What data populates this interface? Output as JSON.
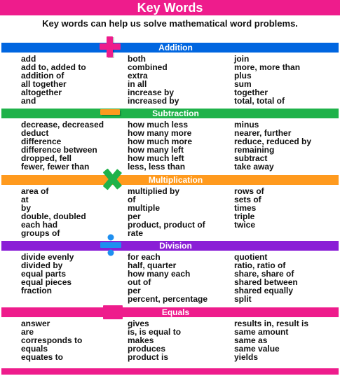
{
  "title": "Key Words",
  "intro": "Key words can help us solve mathematical word problems.",
  "sections": [
    {
      "name": "Addition",
      "color": "#0066e0",
      "icon_name": "plus-icon",
      "icon_color": "#ee1c8c",
      "columns": [
        [
          "add",
          "add to, added to",
          "addition of",
          "all together",
          "altogether",
          "and"
        ],
        [
          "both",
          "combined",
          "extra",
          "in all",
          "increase by",
          "increased by"
        ],
        [
          "join",
          "more, more than",
          "plus",
          "sum",
          "together",
          "total, total of"
        ]
      ]
    },
    {
      "name": "Subtraction",
      "color": "#1fb24a",
      "icon_name": "minus-icon",
      "icon_color": "#ff9a1e",
      "columns": [
        [
          "decrease, decreased",
          "deduct",
          "difference",
          "difference between",
          "dropped, fell",
          "fewer, fewer than"
        ],
        [
          "how much less",
          "how many more",
          "how much more",
          "how many left",
          "how much left",
          "less, less than"
        ],
        [
          "minus",
          "nearer, further",
          "reduce, reduced by",
          "remaining",
          "subtract",
          "take away"
        ]
      ]
    },
    {
      "name": "Multiplication",
      "color": "#ff9a1e",
      "icon_name": "times-icon",
      "icon_color": "#1fb24a",
      "columns": [
        [
          "area of",
          "at",
          "by",
          "double, doubled",
          "each had",
          "groups of"
        ],
        [
          "multiplied by",
          "of",
          "multiple",
          "per",
          "product, product of",
          "rate"
        ],
        [
          "rows of",
          "sets of",
          "times",
          "triple",
          "twice"
        ]
      ]
    },
    {
      "name": "Division",
      "color": "#8a1fd6",
      "icon_name": "divide-icon",
      "icon_color": "#1e8ff0",
      "columns": [
        [
          "divide evenly",
          "divided by",
          "equal parts",
          "equal pieces",
          "fraction"
        ],
        [
          "for each",
          "half, quarter",
          "how many each",
          "out of",
          "per",
          "percent, percentage"
        ],
        [
          "quotient",
          "ratio, ratio of",
          "share, share of",
          "shared between",
          "shared equally",
          "split"
        ]
      ]
    },
    {
      "name": "Equals",
      "color": "#ee1c8c",
      "icon_name": "equals-icon",
      "icon_color": "#ee1c8c",
      "columns": [
        [
          "answer",
          "are",
          "corresponds to",
          "equals",
          "equates to"
        ],
        [
          "gives",
          "is, is equal to",
          "makes",
          "produces",
          "product is"
        ],
        [
          "results in, result is",
          "same amount",
          "same as",
          "same value",
          "yields"
        ]
      ]
    }
  ],
  "bottom_bar_color": "#ee1c8c"
}
